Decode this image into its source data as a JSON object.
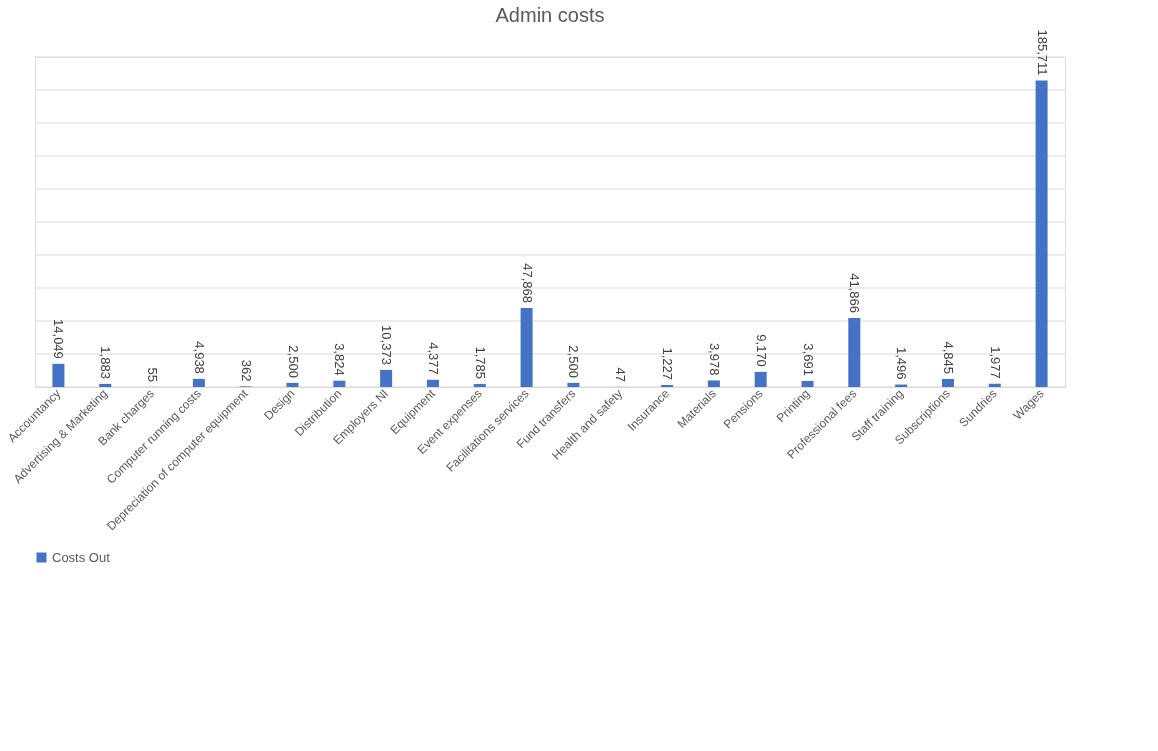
{
  "chart_data": {
    "type": "bar",
    "title": "Admin costs",
    "categories": [
      "Accountancy",
      "Advertising & Marketing",
      "Bank charges",
      "Computer running costs",
      "Depreciation of computer equipment",
      "Design",
      "Distribution",
      "Employers NI",
      "Equipment",
      "Event expenses",
      "Facilitations services",
      "Fund transfers",
      "Health and safety",
      "Insurance",
      "Materials",
      "Pensions",
      "Printing",
      "Professional fees",
      "Staff training",
      "Subscriptions",
      "Sundries",
      "Wages"
    ],
    "series": [
      {
        "name": "Costs Out",
        "color": "#4472c4",
        "values": [
          14049,
          1883,
          55,
          4938,
          362,
          2500,
          3824,
          10373,
          4377,
          1785,
          47868,
          2500,
          47,
          1227,
          3978,
          9170,
          3691,
          41866,
          1496,
          4845,
          1977,
          185711
        ],
        "value_labels": [
          "14,049",
          "1,883",
          "55",
          "4,938",
          "362",
          "2,500",
          "3,824",
          "10,373",
          "4,377",
          "1,785",
          "47,868",
          "2,500",
          "47",
          "1,227",
          "3,978",
          "9,170",
          "3,691",
          "41,866",
          "1,496",
          "4,845",
          "1,977",
          "185,711"
        ]
      }
    ],
    "ylim": [
      0,
      200000
    ],
    "yticks": [
      {
        "value": 0,
        "label": null
      },
      {
        "value": 20000,
        "label": null
      },
      {
        "value": 40000,
        "label": null
      },
      {
        "value": 60000,
        "label": null
      },
      {
        "value": 80000,
        "label": null
      },
      {
        "value": 100000,
        "label": null
      },
      {
        "value": 120000,
        "label": null
      },
      {
        "value": 140000,
        "label": null
      },
      {
        "value": 160000,
        "label": null
      },
      {
        "value": 180000,
        "label": null
      },
      {
        "value": 200000,
        "label": null
      }
    ],
    "tick_labels": "x",
    "grid": "y",
    "legend": "bottom"
  }
}
